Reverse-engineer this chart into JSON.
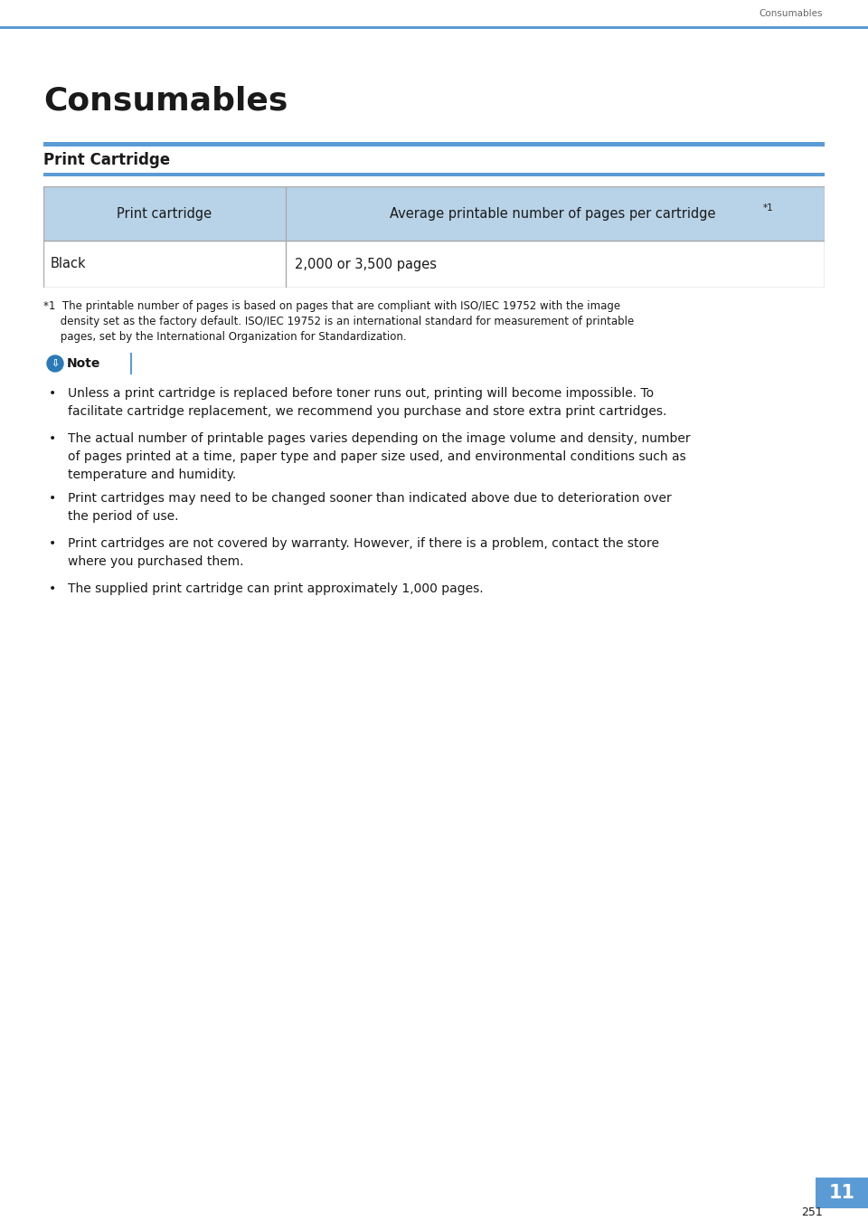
{
  "header_text": "Consumables",
  "title": "Consumables",
  "section_title": "Print Cartridge",
  "table_header_col1": "Print cartridge",
  "table_header_col2": "Average printable number of pages per cartridge ",
  "table_header_col2_sup": "*1",
  "table_row_col1": "Black",
  "table_row_col2": "2,000 or 3,500 pages",
  "footnote_line1": "*1  The printable number of pages is based on pages that are compliant with ISO/IEC 19752 with the image",
  "footnote_line2": "     density set as the factory default. ISO/IEC 19752 is an international standard for measurement of printable",
  "footnote_line3": "     pages, set by the International Organization for Standardization.",
  "note_label": "Note",
  "bullet_points": [
    "Unless a print cartridge is replaced before toner runs out, printing will become impossible. To\nfacilitate cartridge replacement, we recommend you purchase and store extra print cartridges.",
    "The actual number of printable pages varies depending on the image volume and density, number\nof pages printed at a time, paper type and paper size used, and environmental conditions such as\ntemperature and humidity.",
    "Print cartridges may need to be changed sooner than indicated above due to deterioration over\nthe period of use.",
    "Print cartridges are not covered by warranty. However, if there is a problem, contact the store\nwhere you purchased them.",
    "The supplied print cartridge can print approximately 1,000 pages."
  ],
  "page_number": "251",
  "chapter_number": "11",
  "top_line_color": "#5b9bd5",
  "section_bar_color": "#5b9bd5",
  "table_header_bg": "#b8d3e8",
  "table_border_color": "#aaaaaa",
  "note_border_color": "#5b9bd5",
  "note_icon_color": "#2a7ab8",
  "bg_color": "#ffffff",
  "text_color": "#1a1a1a",
  "header_text_color": "#666666",
  "chapter_box_color": "#5b9bd5"
}
